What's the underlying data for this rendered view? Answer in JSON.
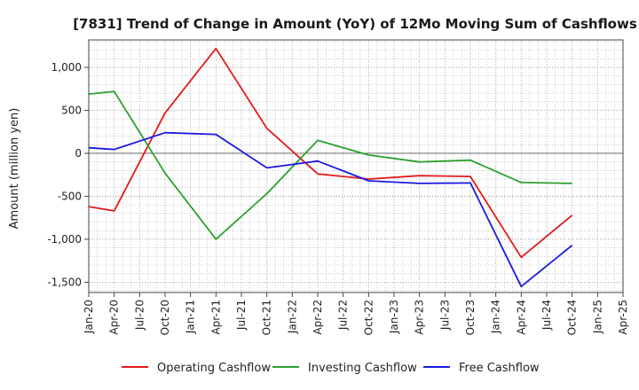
{
  "chart_data": {
    "type": "line",
    "title": "[7831]  Trend of Change in Amount (YoY) of 12Mo Moving Sum of Cashflows",
    "xlabel": "",
    "ylabel": "Amount (million yen)",
    "ylim": [
      -1620,
      1320
    ],
    "yticks": [
      1000,
      500,
      0,
      -500,
      -1000,
      -1500
    ],
    "ytick_labels": [
      "1,000",
      "500",
      "0",
      "-500",
      "-1,000",
      "-1,500"
    ],
    "categories": [
      "Jan-20",
      "Apr-20",
      "Jul-20",
      "Oct-20",
      "Jan-21",
      "Apr-21",
      "Jul-21",
      "Oct-21",
      "Jan-22",
      "Apr-22",
      "Jul-22",
      "Oct-22",
      "Jan-23",
      "Apr-23",
      "Jul-23",
      "Oct-23",
      "Jan-24",
      "Apr-24",
      "Jul-24",
      "Oct-24",
      "Jan-25",
      "Apr-25"
    ],
    "grid": true,
    "legend_position": "bottom",
    "series": [
      {
        "name": "Operating Cashflow",
        "color": "#e31a1c",
        "values": [
          -620,
          -670,
          null,
          470,
          null,
          1220,
          null,
          290,
          null,
          -240,
          null,
          -300,
          null,
          -260,
          null,
          -270,
          null,
          -1210,
          null,
          -720,
          null,
          null
        ]
      },
      {
        "name": "Investing Cashflow",
        "color": "#2ca02c",
        "values": [
          690,
          720,
          null,
          -230,
          null,
          -1000,
          null,
          -470,
          null,
          150,
          null,
          -20,
          null,
          -100,
          null,
          -80,
          null,
          -340,
          null,
          -350,
          null,
          null
        ]
      },
      {
        "name": "Free Cashflow",
        "color": "#1a1adf",
        "values": [
          65,
          45,
          null,
          240,
          null,
          220,
          null,
          -170,
          null,
          -90,
          null,
          -320,
          null,
          -350,
          null,
          -345,
          null,
          -1550,
          null,
          -1070,
          null,
          null
        ]
      }
    ]
  }
}
